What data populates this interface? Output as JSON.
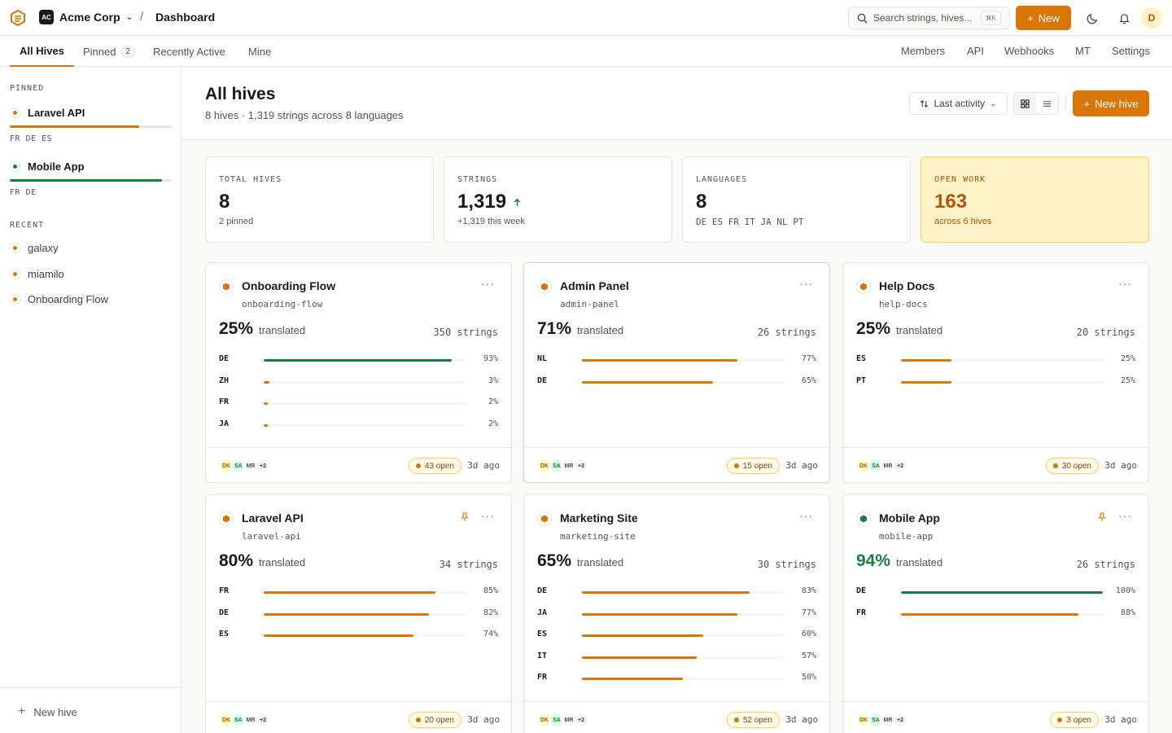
{
  "colors": {
    "accent": "#d97706",
    "good": "#15803d"
  },
  "topbar": {
    "org_initials": "AC",
    "org_name": "Acme Corp",
    "breadcrumb": "Dashboard",
    "search_placeholder": "Search strings, hives...",
    "search_shortcut": "⌘K",
    "new_label": "New",
    "user_initial": "D"
  },
  "tabs": [
    {
      "label": "All Hives"
    },
    {
      "label": "Pinned",
      "count": "2"
    },
    {
      "label": "Recently Active"
    },
    {
      "label": "Mine"
    }
  ],
  "nav": [
    "Members",
    "API",
    "Webhooks",
    "MT",
    "Settings"
  ],
  "sidebar": {
    "pinned_heading": "PINNED",
    "pinned": [
      {
        "name": "Laravel API",
        "progress": 80,
        "color": "#d97706",
        "langs": "FR DE ES"
      },
      {
        "name": "Mobile App",
        "progress": 94,
        "color": "#15803d",
        "langs": "FR DE"
      }
    ],
    "recent_heading": "RECENT",
    "recent": [
      "galaxy",
      "miamilo",
      "Onboarding Flow"
    ],
    "new_hive_label": "New hive"
  },
  "header": {
    "title": "All hives",
    "subtitle": "8 hives · 1,319 strings across 8 languages",
    "sort_label": "Last activity",
    "new_hive_label": "New hive"
  },
  "stats": [
    {
      "label": "TOTAL HIVES",
      "value": "8",
      "sub": "2 pinned"
    },
    {
      "label": "STRINGS",
      "value": "1,319",
      "sub": "+1,319 this week",
      "trend": "up"
    },
    {
      "label": "LANGUAGES",
      "value": "8",
      "sub": "DE ES FR IT JA NL PT"
    },
    {
      "label": "OPEN WORK",
      "value": "163",
      "sub": "across 6 hives"
    }
  ],
  "hives": [
    {
      "name": "Onboarding Flow",
      "slug": "onboarding-flow",
      "pct": "25%",
      "translated": "translated",
      "strings": "350 strings",
      "pinned": false,
      "langs": [
        {
          "code": "DE",
          "pct": 93,
          "label": "93%",
          "color": "#15803d"
        },
        {
          "code": "ZH",
          "pct": 3,
          "label": "3%",
          "color": "#d97706"
        },
        {
          "code": "FR",
          "pct": 2,
          "label": "2%",
          "color": "#d97706"
        },
        {
          "code": "JA",
          "pct": 2,
          "label": "2%",
          "color": "#d97706"
        }
      ],
      "open": "43 open",
      "ago": "3d ago"
    },
    {
      "name": "Admin Panel",
      "slug": "admin-panel",
      "pct": "71%",
      "translated": "translated",
      "strings": "26 strings",
      "pinned": false,
      "langs": [
        {
          "code": "NL",
          "pct": 77,
          "label": "77%",
          "color": "#d97706"
        },
        {
          "code": "DE",
          "pct": 65,
          "label": "65%",
          "color": "#d97706"
        }
      ],
      "open": "15 open",
      "ago": "3d ago"
    },
    {
      "name": "Help Docs",
      "slug": "help-docs",
      "pct": "25%",
      "translated": "translated",
      "strings": "20 strings",
      "pinned": false,
      "langs": [
        {
          "code": "ES",
          "pct": 25,
          "label": "25%",
          "color": "#d97706"
        },
        {
          "code": "PT",
          "pct": 25,
          "label": "25%",
          "color": "#d97706"
        }
      ],
      "open": "30 open",
      "ago": "3d ago"
    },
    {
      "name": "Laravel API",
      "slug": "laravel-api",
      "pct": "80%",
      "translated": "translated",
      "strings": "34 strings",
      "pinned": true,
      "langs": [
        {
          "code": "FR",
          "pct": 85,
          "label": "85%",
          "color": "#d97706"
        },
        {
          "code": "DE",
          "pct": 82,
          "label": "82%",
          "color": "#d97706"
        },
        {
          "code": "ES",
          "pct": 74,
          "label": "74%",
          "color": "#d97706"
        }
      ],
      "open": "20 open",
      "ago": "3d ago"
    },
    {
      "name": "Marketing Site",
      "slug": "marketing-site",
      "pct": "65%",
      "translated": "translated",
      "strings": "30 strings",
      "pinned": false,
      "langs": [
        {
          "code": "DE",
          "pct": 83,
          "label": "83%",
          "color": "#d97706"
        },
        {
          "code": "JA",
          "pct": 77,
          "label": "77%",
          "color": "#d97706"
        },
        {
          "code": "ES",
          "pct": 60,
          "label": "60%",
          "color": "#d97706"
        },
        {
          "code": "IT",
          "pct": 57,
          "label": "57%",
          "color": "#d97706"
        },
        {
          "code": "FR",
          "pct": 50,
          "label": "50%",
          "color": "#d97706"
        }
      ],
      "open": "52 open",
      "ago": "3d ago"
    },
    {
      "name": "Mobile App",
      "slug": "mobile-app",
      "pct": "94%",
      "translated": "translated",
      "strings": "26 strings",
      "pinned": true,
      "good": true,
      "langs": [
        {
          "code": "DE",
          "pct": 100,
          "label": "100%",
          "color": "#15803d"
        },
        {
          "code": "FR",
          "pct": 88,
          "label": "88%",
          "color": "#d97706"
        }
      ],
      "open": "3 open",
      "ago": "3d ago"
    }
  ],
  "avatars": [
    {
      "initials": "DK",
      "bg": "#fef9c3",
      "fg": "#a16207"
    },
    {
      "initials": "SA",
      "bg": "#dcfce7",
      "fg": "#15803d"
    },
    {
      "initials": "MR",
      "bg": "#f5f5f4",
      "fg": "#57534e"
    },
    {
      "initials": "+2",
      "bg": "#f5f5f4",
      "fg": "#44403c"
    }
  ]
}
